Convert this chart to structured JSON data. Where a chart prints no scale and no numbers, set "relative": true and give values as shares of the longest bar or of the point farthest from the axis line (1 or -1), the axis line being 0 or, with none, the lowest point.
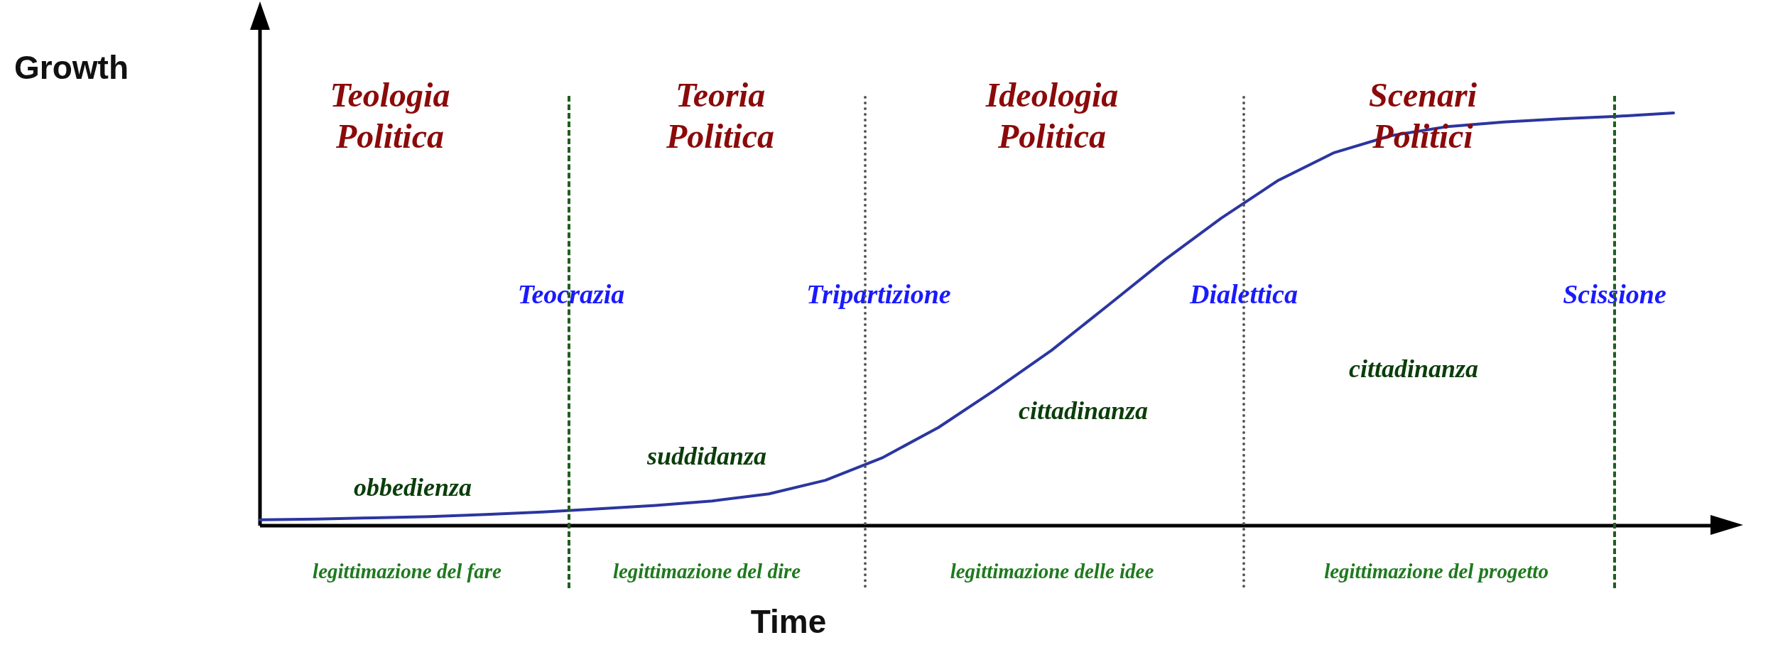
{
  "chart_data": {
    "type": "line",
    "relative": true,
    "xlabel": "Time",
    "ylabel": "Growth",
    "marker": "none",
    "color": "#2b36a0",
    "categories": [
      null,
      null,
      null,
      null,
      null,
      null,
      null,
      null,
      null,
      null,
      null,
      null,
      null,
      null,
      null,
      null,
      null,
      null,
      null,
      null,
      null,
      null,
      null,
      null,
      null,
      null
    ],
    "values": [
      0.014,
      0.016,
      0.019,
      0.022,
      0.027,
      0.033,
      0.041,
      0.049,
      0.06,
      0.077,
      0.11,
      0.164,
      0.238,
      0.329,
      0.425,
      0.534,
      0.644,
      0.745,
      0.836,
      0.904,
      0.945,
      0.967,
      0.978,
      0.986,
      0.992,
      1
    ],
    "annotations": [
      "Teologia\nPolitica",
      "Teoria\nPolitica",
      "Ideologia\nPolitica",
      "Scenari\nPolitici",
      "Teocrazia",
      "Tripartizione",
      "Dialettica",
      "Scissione",
      "obbedienza",
      "suddidanza",
      "cittadinanza",
      "cittadinanza",
      "legittimazione del fare",
      "legittimazione del dire",
      "legittimazione delle idee",
      "legittimazione del progetto"
    ]
  }
}
